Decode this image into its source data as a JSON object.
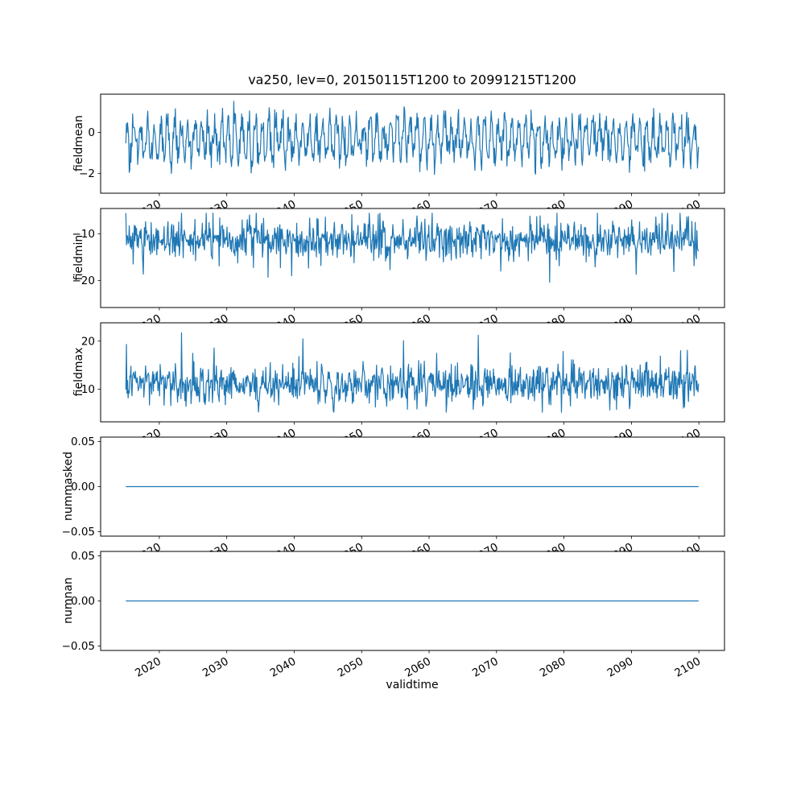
{
  "figure": {
    "title": "va250, lev=0, 20150115T1200 to 20991215T1200",
    "xlabel": "validtime",
    "background_color": "#ffffff",
    "line_color": "#1f77b4",
    "axis_color": "#000000",
    "text_color": "#000000"
  },
  "chart_data": [
    {
      "type": "line",
      "ylabel": "fieldmean",
      "xlabel": "",
      "xlim": [
        2011.3,
        2103.8
      ],
      "ylim": [
        -2.95,
        1.85
      ],
      "yticks": [
        {
          "v": 0,
          "label": "0"
        },
        {
          "v": -2,
          "label": "−2"
        }
      ],
      "xticks": {
        "values": [
          2020,
          2030,
          2040,
          2050,
          2060,
          2070,
          2080,
          2090,
          2100
        ],
        "labels": [
          "2020",
          "2030",
          "2040",
          "2050",
          "2060",
          "2070",
          "2080",
          "2090",
          "2100"
        ]
      },
      "x_start": 2015.0417,
      "x_end": 2099.9583,
      "points_per_year": 12,
      "grid": false,
      "legend": "none",
      "series": {
        "name": "fieldmean",
        "color": "#1f77b4",
        "gen": {
          "seed": 42,
          "mean": -0.35,
          "seasonal_amp": 0.85,
          "noise_sd": 0.42,
          "spike_prob": 0.006,
          "spike_amp": -0.9,
          "clip_min": -2.7,
          "clip_max": 1.7
        },
        "summary": {
          "approx_mean": -0.35,
          "approx_min": -2.6,
          "approx_max": 1.6
        }
      }
    },
    {
      "type": "line",
      "ylabel": "fieldmin",
      "xlabel": "",
      "xlim": [
        2011.3,
        2103.8
      ],
      "ylim": [
        -25.8,
        -4.6
      ],
      "yticks": [
        {
          "v": -10,
          "label": "−10"
        },
        {
          "v": -20,
          "label": "−20"
        }
      ],
      "xticks": {
        "values": [
          2020,
          2030,
          2040,
          2050,
          2060,
          2070,
          2080,
          2090,
          2100
        ],
        "labels": [
          "2020",
          "2030",
          "2040",
          "2050",
          "2060",
          "2070",
          "2080",
          "2090",
          "2100"
        ]
      },
      "x_start": 2015.0417,
      "x_end": 2099.9583,
      "points_per_year": 12,
      "grid": false,
      "legend": "none",
      "series": {
        "name": "fieldmin",
        "color": "#1f77b4",
        "gen": {
          "seed": 7,
          "mean": -11.2,
          "seasonal_amp": 0.7,
          "noise_sd": 2.0,
          "spike_prob": 0.03,
          "spike_amp": -5.5,
          "clip_min": -24.6,
          "clip_max": -5.6
        },
        "summary": {
          "approx_mean": -11.5,
          "approx_min": -24.5,
          "approx_max": -6.0
        }
      }
    },
    {
      "type": "line",
      "ylabel": "fieldmax",
      "xlabel": "",
      "xlim": [
        2011.3,
        2103.8
      ],
      "ylim": [
        3.2,
        23.8
      ],
      "yticks": [
        {
          "v": 20,
          "label": "20"
        },
        {
          "v": 10,
          "label": "10"
        }
      ],
      "xticks": {
        "values": [
          2020,
          2030,
          2040,
          2050,
          2060,
          2070,
          2080,
          2090,
          2100
        ],
        "labels": [
          "2020",
          "2030",
          "2040",
          "2050",
          "2060",
          "2070",
          "2080",
          "2090",
          "2100"
        ]
      },
      "x_start": 2015.0417,
      "x_end": 2099.9583,
      "points_per_year": 12,
      "grid": false,
      "legend": "none",
      "series": {
        "name": "fieldmax",
        "color": "#1f77b4",
        "gen": {
          "seed": 13,
          "mean": 11.0,
          "seasonal_amp": 0.7,
          "noise_sd": 1.9,
          "spike_prob": 0.02,
          "spike_amp": 5.5,
          "clip_min": 5.2,
          "clip_max": 22.8
        },
        "summary": {
          "approx_mean": 11.0,
          "approx_min": 5.5,
          "approx_max": 22.5
        }
      }
    },
    {
      "type": "line",
      "ylabel": "nummasked",
      "xlabel": "",
      "xlim": [
        2011.3,
        2103.8
      ],
      "ylim": [
        -0.055,
        0.055
      ],
      "yticks": [
        {
          "v": 0.05,
          "label": "0.05"
        },
        {
          "v": 0,
          "label": "0.00"
        },
        {
          "v": -0.05,
          "label": "−0.05"
        }
      ],
      "xticks": {
        "values": [
          2020,
          2030,
          2040,
          2050,
          2060,
          2070,
          2080,
          2090,
          2100
        ],
        "labels": [
          "2020",
          "2030",
          "2040",
          "2050",
          "2060",
          "2070",
          "2080",
          "2090",
          "2100"
        ]
      },
      "x_start": 2015.0417,
      "x_end": 2099.9583,
      "points_per_year": 12,
      "grid": false,
      "legend": "none",
      "series": {
        "name": "nummasked",
        "color": "#1f77b4",
        "gen": {
          "seed": 1,
          "mean": 0,
          "seasonal_amp": 0,
          "noise_sd": 0,
          "spike_prob": 0,
          "spike_amp": 0
        },
        "summary": {
          "approx_mean": 0,
          "approx_min": 0,
          "approx_max": 0,
          "constant_value": 0
        }
      }
    },
    {
      "type": "line",
      "ylabel": "numnan",
      "xlabel": "validtime",
      "xlim": [
        2011.3,
        2103.8
      ],
      "ylim": [
        -0.055,
        0.055
      ],
      "yticks": [
        {
          "v": 0.05,
          "label": "0.05"
        },
        {
          "v": 0,
          "label": "0.00"
        },
        {
          "v": -0.05,
          "label": "−0.05"
        }
      ],
      "xticks": {
        "values": [
          2020,
          2030,
          2040,
          2050,
          2060,
          2070,
          2080,
          2090,
          2100
        ],
        "labels": [
          "2020",
          "2030",
          "2040",
          "2050",
          "2060",
          "2070",
          "2080",
          "2090",
          "2100"
        ]
      },
      "x_start": 2015.0417,
      "x_end": 2099.9583,
      "points_per_year": 12,
      "grid": false,
      "legend": "none",
      "series": {
        "name": "numnan",
        "color": "#1f77b4",
        "gen": {
          "seed": 2,
          "mean": 0,
          "seasonal_amp": 0,
          "noise_sd": 0,
          "spike_prob": 0,
          "spike_amp": 0
        },
        "summary": {
          "approx_mean": 0,
          "approx_min": 0,
          "approx_max": 0,
          "constant_value": 0
        }
      }
    }
  ]
}
